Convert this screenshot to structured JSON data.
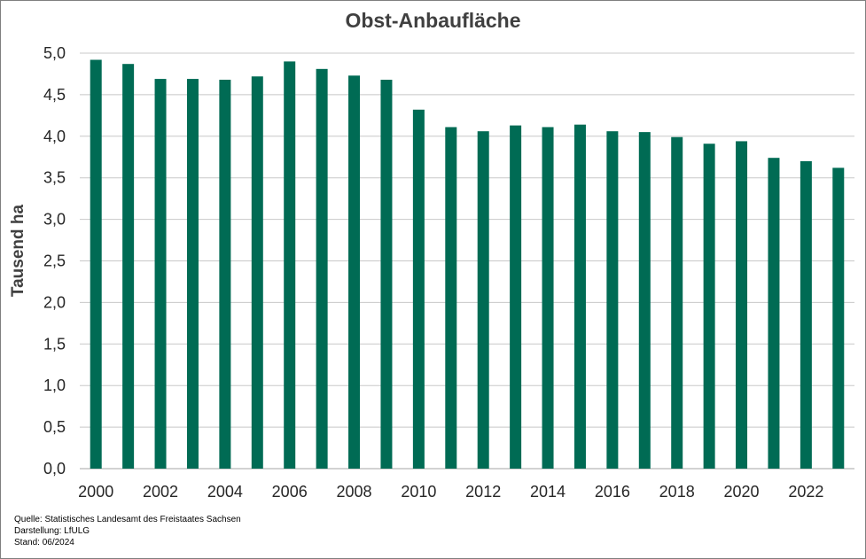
{
  "chart_data": {
    "type": "bar",
    "title": "Obst-Anbaufläche",
    "ylabel": "Tausend ha",
    "xlabel": "",
    "ylim": [
      0,
      5.0
    ],
    "yticks": [
      "0,0",
      "0,5",
      "1,0",
      "1,5",
      "2,0",
      "2,5",
      "3,0",
      "3,5",
      "4,0",
      "4,5",
      "5,0"
    ],
    "grid": true,
    "bar_color": "#006B54",
    "categories": [
      "2000",
      "2001",
      "2002",
      "2003",
      "2004",
      "2005",
      "2006",
      "2007",
      "2008",
      "2009",
      "2010",
      "2011",
      "2012",
      "2013",
      "2014",
      "2015",
      "2016",
      "2017",
      "2018",
      "2019",
      "2020",
      "2021",
      "2022",
      "2023"
    ],
    "xtick_labels": [
      "2000",
      "",
      "2002",
      "",
      "2004",
      "",
      "2006",
      "",
      "2008",
      "",
      "2010",
      "",
      "2012",
      "",
      "2014",
      "",
      "2016",
      "",
      "2018",
      "",
      "2020",
      "",
      "2022",
      ""
    ],
    "values": [
      4.92,
      4.87,
      4.69,
      4.69,
      4.68,
      4.72,
      4.9,
      4.81,
      4.73,
      4.68,
      4.32,
      4.11,
      4.06,
      4.13,
      4.11,
      4.14,
      4.06,
      4.05,
      3.99,
      3.91,
      3.94,
      3.74,
      3.7,
      3.62
    ]
  },
  "footer": {
    "source": "Quelle:  Statistisches Landesamt des Freistaates Sachsen",
    "author": "Darstellung: LfULG",
    "date": "Stand: 06/2024"
  }
}
